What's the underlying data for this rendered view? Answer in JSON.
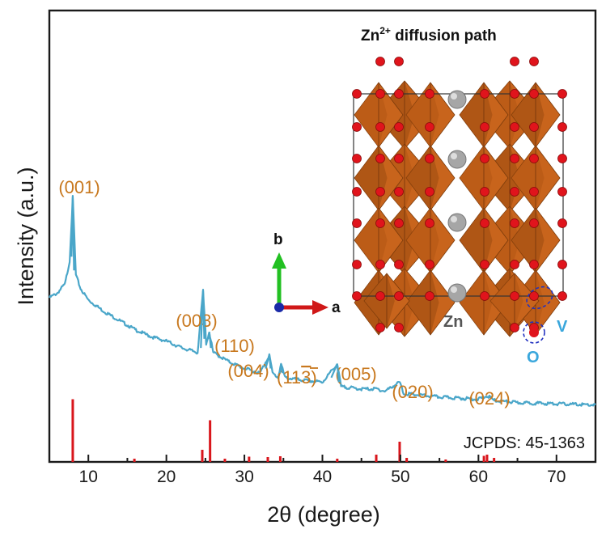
{
  "chart_data": {
    "type": "line",
    "xlabel": "2θ (degree)",
    "ylabel": "Intensity (a.u.)",
    "xlim": [
      5,
      75
    ],
    "xticks": [
      10,
      20,
      30,
      40,
      50,
      60,
      70
    ],
    "y_ticks_shown": false,
    "colors": {
      "pattern": "#4aa6c9",
      "reference": "#d9161c",
      "peak_labels": "#c8781e"
    },
    "series": [
      {
        "type": "line",
        "x": [
          5,
          6,
          7,
          7.6,
          8.0,
          8.4,
          9,
          10,
          12,
          14,
          16,
          18,
          20,
          22,
          24,
          24.7,
          25.1,
          25.5,
          26,
          28,
          30,
          32,
          33.2,
          33.6,
          34.3,
          34.7,
          35.2,
          37,
          40,
          41.9,
          42.4,
          45,
          47,
          48,
          49.9,
          50.4,
          55,
          60,
          61.2,
          62,
          65,
          70,
          75
        ],
        "y": [
          56,
          58,
          62,
          72,
          100,
          66,
          60,
          55,
          50,
          46,
          42,
          39,
          37,
          34,
          32,
          59,
          36,
          41,
          32,
          28,
          25,
          23,
          31,
          23,
          21,
          27,
          21,
          20,
          19,
          27,
          17,
          16,
          16,
          15,
          19,
          14,
          12.5,
          11.5,
          13,
          11,
          10,
          9.5,
          9
        ]
      },
      {
        "type": "stick",
        "x": [
          8.0,
          15.9,
          24.6,
          25.6,
          27.5,
          30.6,
          33.0,
          34.6,
          41.9,
          46.9,
          49.9,
          50.8,
          55.8,
          60.7,
          61.1,
          62.0
        ],
        "y": [
          15.5,
          0.8,
          3.0,
          10.3,
          0.8,
          1.3,
          1.2,
          1.4,
          0.8,
          1.8,
          5.0,
          1.0,
          0.6,
          1.5,
          1.8,
          1.0
        ]
      }
    ],
    "peak_labels": [
      "(001)",
      "(003)",
      "(110)",
      "(004)",
      "(11",
      "3",
      ")",
      "(005)",
      "(020)",
      "(024)"
    ],
    "reference_label": "JCPDS: 45-1363"
  },
  "inset": {
    "title": "Zn",
    "title_sup": "2+",
    "title_rest": " diffusion path",
    "axis_b": "b",
    "axis_a": "a",
    "label_zn": "Zn",
    "label_v": "V",
    "label_o": "O",
    "colors": {
      "octahedron": "#c8641c",
      "octahedron_dark": "#9a4a10",
      "oxygen": "#e0141c",
      "zinc": "#a6a6a6",
      "axis_b": "#22c022",
      "axis_a": "#d01818",
      "origin": "#1a2aa8",
      "dashed_circle": "#2030c0"
    }
  }
}
